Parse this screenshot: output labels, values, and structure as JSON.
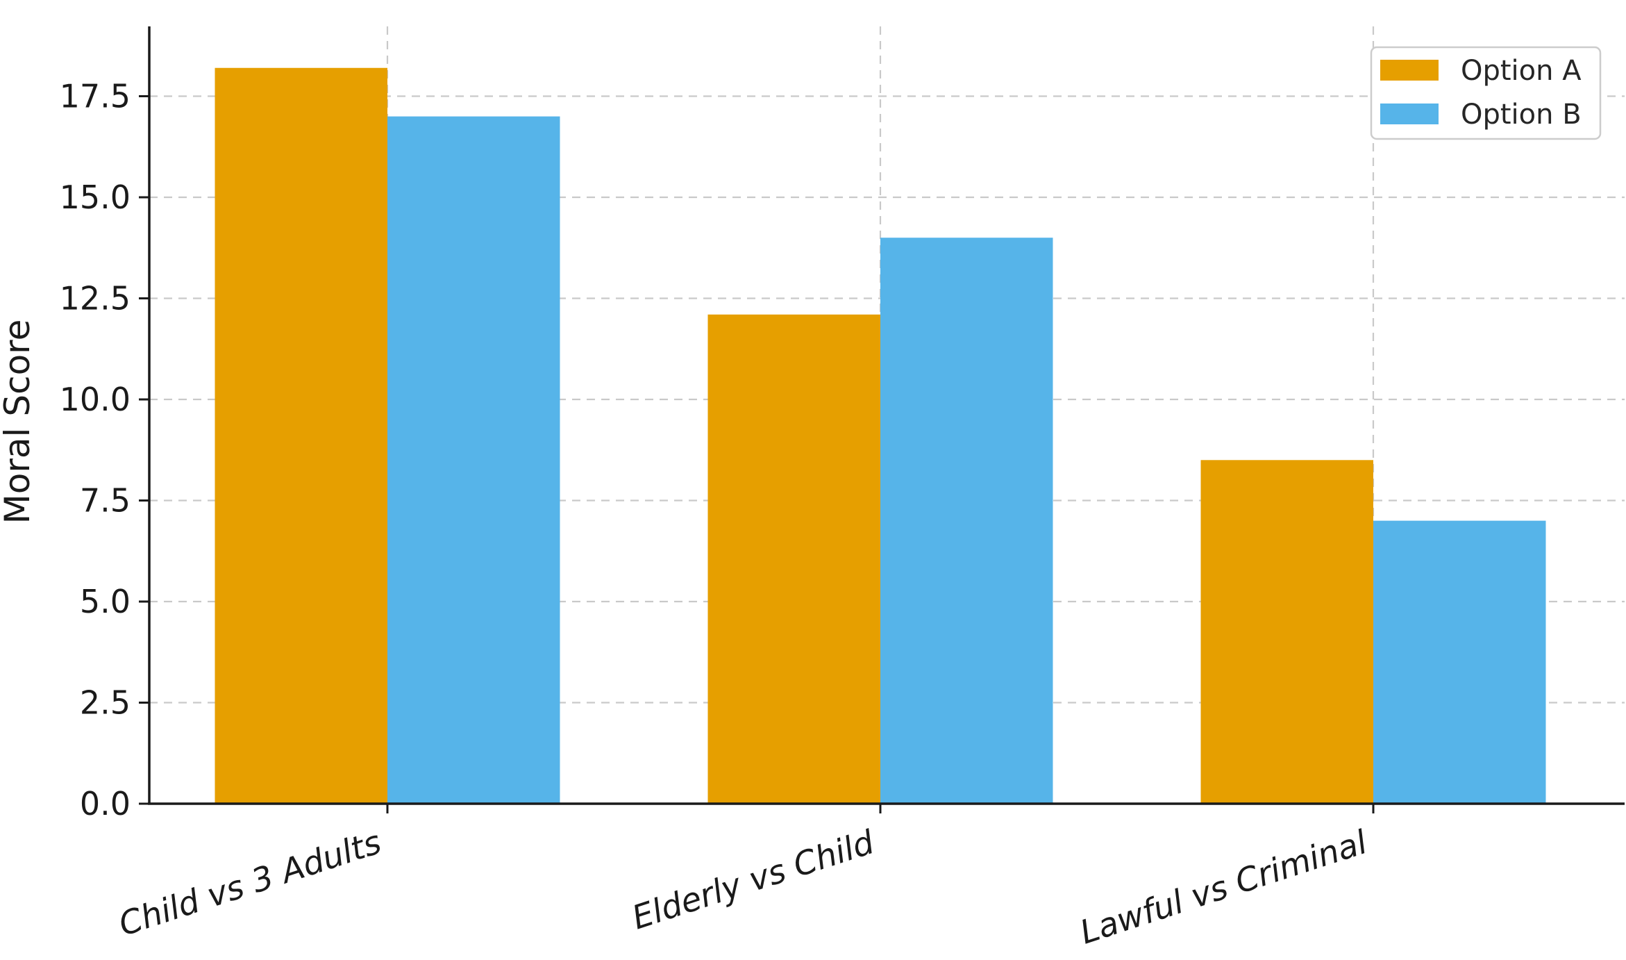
{
  "chart_data": {
    "type": "bar",
    "title": "",
    "ylabel": "Moral Score",
    "xlabel": "",
    "categories": [
      "Child vs 3 Adults",
      "Elderly vs Child",
      "Lawful vs Criminal"
    ],
    "series": [
      {
        "name": "Option A",
        "color": "#E69F00",
        "values": [
          18.2,
          12.1,
          8.5
        ]
      },
      {
        "name": "Option B",
        "color": "#56B4E9",
        "values": [
          17.0,
          14.0,
          7.0
        ]
      }
    ],
    "y_ticks": [
      0.0,
      2.5,
      5.0,
      7.5,
      10.0,
      12.5,
      15.0,
      17.5
    ],
    "y_tick_labels": [
      "0.0",
      "2.5",
      "5.0",
      "7.5",
      "10.0",
      "12.5",
      "15.0",
      "17.5"
    ],
    "ylim": [
      0,
      19.2
    ],
    "bar_width_fraction": 0.35,
    "grid": true,
    "grid_style": "dashed",
    "x_tick_rotation_deg": 18,
    "x_tick_font_style": "italic",
    "legend": {
      "position": "upper right",
      "entries": [
        {
          "label": "Option A",
          "swatch_color": "#E69F00"
        },
        {
          "label": "Option B",
          "swatch_color": "#56B4E9"
        }
      ]
    },
    "colors": {
      "background": "#ffffff",
      "grid": "#c9c9c9",
      "axis": "#1a1a1a",
      "tick_text": "#1a1a1a",
      "legend_border": "#cccccc",
      "legend_text": "#262626",
      "option_a": "#E69F00",
      "option_b": "#56B4E9"
    }
  }
}
